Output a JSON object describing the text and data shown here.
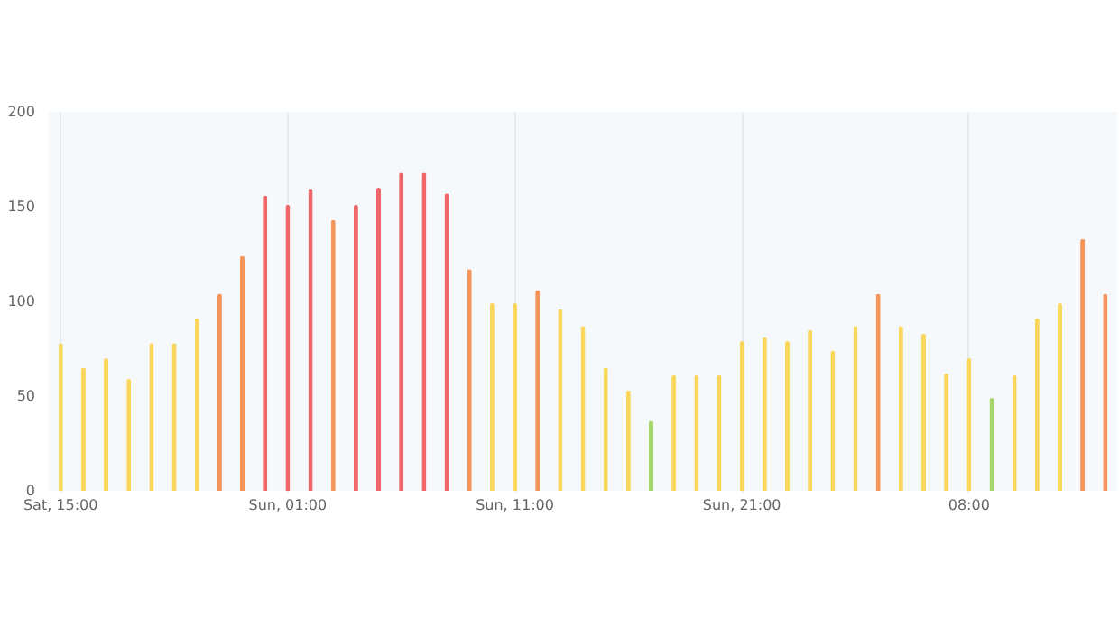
{
  "chart_data": {
    "type": "bar",
    "categories": [
      "Sat, 15:00",
      null,
      null,
      null,
      null,
      null,
      null,
      null,
      null,
      null,
      "Sun, 01:00",
      null,
      null,
      null,
      null,
      null,
      null,
      null,
      null,
      null,
      "Sun, 11:00",
      null,
      null,
      null,
      null,
      null,
      null,
      null,
      null,
      null,
      "Sun, 21:00",
      null,
      null,
      null,
      null,
      null,
      null,
      null,
      null,
      null,
      "08:00",
      null,
      null,
      null,
      null,
      null,
      null
    ],
    "values": [
      78,
      65,
      70,
      59,
      78,
      78,
      91,
      104,
      124,
      156,
      151,
      159,
      143,
      151,
      160,
      168,
      168,
      157,
      117,
      99,
      99,
      106,
      96,
      87,
      65,
      53,
      37,
      61,
      61,
      61,
      79,
      81,
      79,
      85,
      74,
      87,
      104,
      87,
      83,
      62,
      70,
      49,
      61,
      91,
      99,
      133,
      104
    ],
    "colors": [
      "#f9d65c",
      "#f9d65c",
      "#f9d65c",
      "#f9d65c",
      "#f9d65c",
      "#f9d65c",
      "#f9d65c",
      "#f5955a",
      "#f5955a",
      "#f0676b",
      "#f0676b",
      "#f0676b",
      "#f5955a",
      "#f0676b",
      "#f0676b",
      "#f0676b",
      "#f0676b",
      "#f0676b",
      "#f5955a",
      "#f9d65c",
      "#f9d65c",
      "#f5955a",
      "#f9d65c",
      "#f9d65c",
      "#f9d65c",
      "#f9d65c",
      "#a5d86a",
      "#f9d65c",
      "#f9d65c",
      "#f9d65c",
      "#f9d65c",
      "#f9d65c",
      "#f9d65c",
      "#f9d65c",
      "#f9d65c",
      "#f9d65c",
      "#f5955a",
      "#f9d65c",
      "#f9d65c",
      "#f9d65c",
      "#f9d65c",
      "#a5d86a",
      "#f9d65c",
      "#f9d65c",
      "#f9d65c",
      "#f5955a",
      "#f5955a"
    ],
    "ylim": [
      0,
      200
    ],
    "yticks": [
      0,
      50,
      100,
      150,
      200
    ],
    "grid": "x"
  }
}
